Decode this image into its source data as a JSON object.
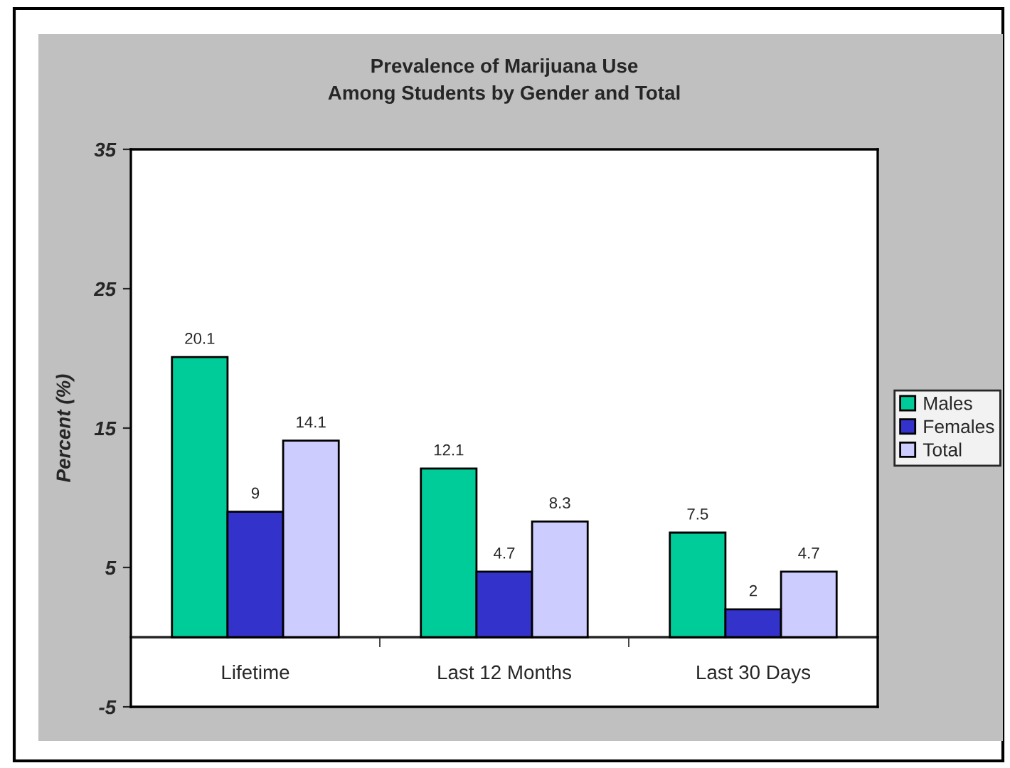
{
  "chart_data": {
    "type": "bar",
    "title": "Prevalence of Marijuana Use\nAmong Students by Gender and Total",
    "ylabel": "Percent (%)",
    "categories": [
      "Lifetime",
      "Last 12 Months",
      "Last 30 Days"
    ],
    "series": [
      {
        "name": "Males",
        "color": "#00cc99",
        "values": [
          20.1,
          12.1,
          7.5
        ]
      },
      {
        "name": "Females",
        "color": "#3333cc",
        "values": [
          9,
          4.7,
          2
        ]
      },
      {
        "name": "Total",
        "color": "#ccccff",
        "values": [
          14.1,
          8.3,
          4.7
        ]
      }
    ],
    "ylim": [
      -5,
      35
    ],
    "yticks": [
      -5,
      5,
      15,
      25,
      35
    ],
    "data_labels": true,
    "legend": "right",
    "grid": false
  }
}
